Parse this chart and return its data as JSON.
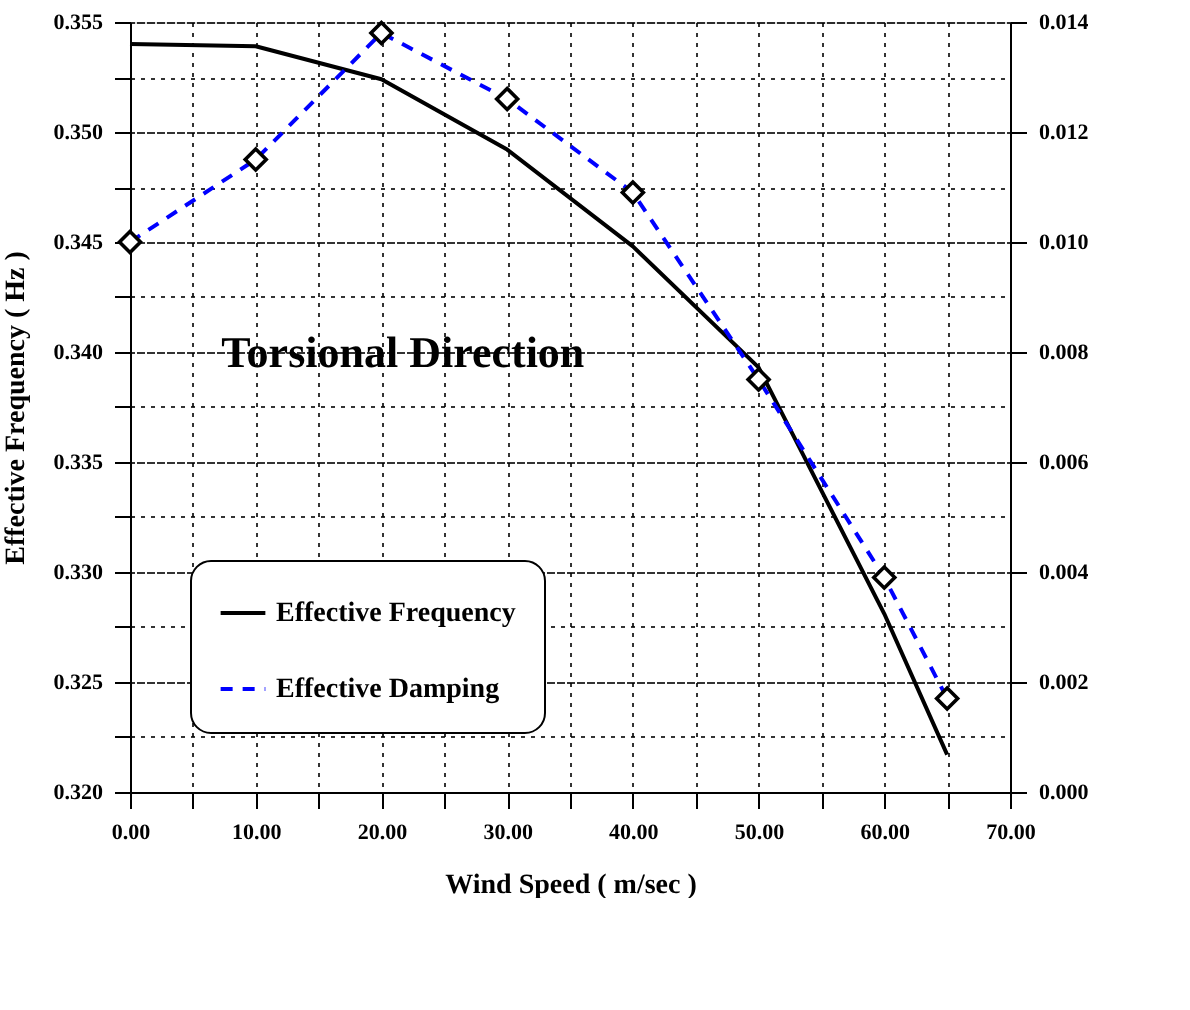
{
  "chart_data": {
    "type": "line",
    "xlabel": "Wind Speed ( m/sec )",
    "ylabel": "Effective Frequency ( Hz )",
    "annotations": [
      "Torsional Direction"
    ],
    "x": [
      0,
      10,
      20,
      30,
      40,
      50,
      60,
      65
    ],
    "series": [
      {
        "name": "Effective Frequency",
        "color": "#000000",
        "values": [
          0.354,
          0.3539,
          0.3524,
          0.3492,
          0.3448,
          0.3393,
          0.3281,
          0.3217
        ],
        "marker": "none",
        "line_style": "solid"
      },
      {
        "name": "Effective Damping",
        "color": "#0000ff",
        "axis": "y2",
        "values": [
          0.01,
          0.0115,
          0.0138,
          0.0126,
          0.0109,
          0.0075,
          0.0039,
          0.0017
        ],
        "marker": "diamond",
        "line_style": "dashed"
      }
    ],
    "xlim": [
      0,
      70
    ],
    "xticks": [
      {
        "value": 0,
        "label": "0.00"
      },
      {
        "value": 5,
        "label": null
      },
      {
        "value": 10,
        "label": "10.00"
      },
      {
        "value": 15,
        "label": null
      },
      {
        "value": 20,
        "label": "20.00"
      },
      {
        "value": 25,
        "label": null
      },
      {
        "value": 30,
        "label": "30.00"
      },
      {
        "value": 35,
        "label": null
      },
      {
        "value": 40,
        "label": "40.00"
      },
      {
        "value": 45,
        "label": null
      },
      {
        "value": 50,
        "label": "50.00"
      },
      {
        "value": 55,
        "label": null
      },
      {
        "value": 60,
        "label": "60.00"
      },
      {
        "value": 65,
        "label": null
      },
      {
        "value": 70,
        "label": "70.00"
      }
    ],
    "ylim": [
      0.32,
      0.355
    ],
    "yticks": [
      {
        "value": 0.32,
        "label": "0.320"
      },
      {
        "value": 0.3225,
        "label": null
      },
      {
        "value": 0.325,
        "label": "0.325"
      },
      {
        "value": 0.3275,
        "label": null
      },
      {
        "value": 0.33,
        "label": "0.330"
      },
      {
        "value": 0.3325,
        "label": null
      },
      {
        "value": 0.335,
        "label": "0.335"
      },
      {
        "value": 0.3375,
        "label": null
      },
      {
        "value": 0.34,
        "label": "0.340"
      },
      {
        "value": 0.3425,
        "label": null
      },
      {
        "value": 0.345,
        "label": "0.345"
      },
      {
        "value": 0.3475,
        "label": null
      },
      {
        "value": 0.35,
        "label": "0.350"
      },
      {
        "value": 0.3525,
        "label": null
      },
      {
        "value": 0.355,
        "label": "0.355"
      }
    ],
    "y2lim": [
      0,
      0.014
    ],
    "y2ticks": [
      {
        "value": 0,
        "label": "0.000"
      },
      {
        "value": 0.001,
        "label": null
      },
      {
        "value": 0.002,
        "label": "0.002"
      },
      {
        "value": 0.003,
        "label": null
      },
      {
        "value": 0.004,
        "label": "0.004"
      },
      {
        "value": 0.005,
        "label": null
      },
      {
        "value": 0.006,
        "label": "0.006"
      },
      {
        "value": 0.007,
        "label": null
      },
      {
        "value": 0.008,
        "label": "0.008"
      },
      {
        "value": 0.009,
        "label": null
      },
      {
        "value": 0.01,
        "label": "0.010"
      },
      {
        "value": 0.011,
        "label": null
      },
      {
        "value": 0.012,
        "label": "0.012"
      },
      {
        "value": 0.013,
        "label": null
      },
      {
        "value": 0.014,
        "label": "0.014"
      }
    ],
    "grid": true,
    "legend": "bottom left"
  }
}
